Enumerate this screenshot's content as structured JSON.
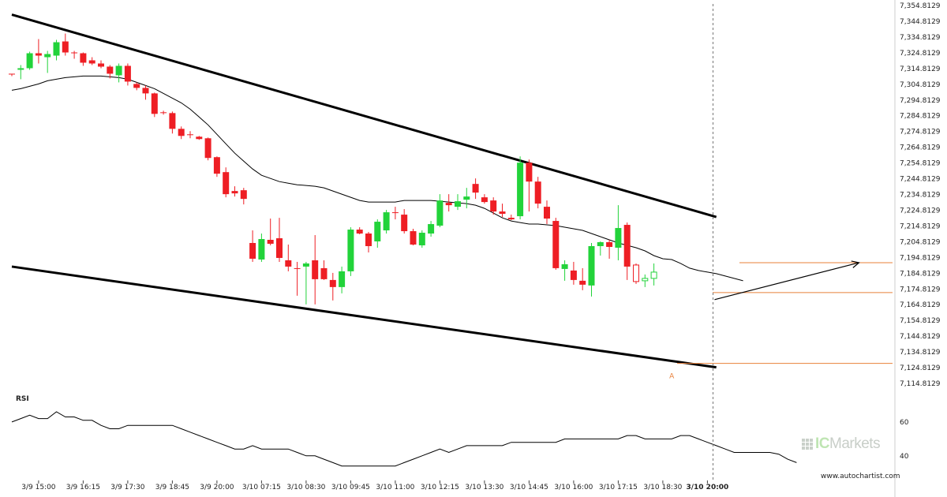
{
  "chart_data": {
    "type": "candlestick",
    "y_ticks": [
      "7,354.8129",
      "7,344.8129",
      "7,334.8129",
      "7,324.8129",
      "7,314.8129",
      "7,304.8129",
      "7,294.8129",
      "7,284.8129",
      "7,274.8129",
      "7,264.8129",
      "7,254.8129",
      "7,244.8129",
      "7,234.8129",
      "7,224.8129",
      "7,214.8129",
      "7,204.8129",
      "7,194.8129",
      "7,184.8129",
      "7,174.8129",
      "7,164.8129",
      "7,154.8129",
      "7,144.8129",
      "7,134.8129",
      "7,124.8129",
      "7,114.8129"
    ],
    "ylim": [
      7114.8129,
      7354.8129
    ],
    "x_ticks": [
      {
        "label": "3/9 15:00",
        "index": 3
      },
      {
        "label": "3/9 16:15",
        "index": 8
      },
      {
        "label": "3/9 17:30",
        "index": 13
      },
      {
        "label": "3/9 18:45",
        "index": 18
      },
      {
        "label": "3/9 20:00",
        "index": 23
      },
      {
        "label": "3/10 07:15",
        "index": 28
      },
      {
        "label": "3/10 08:30",
        "index": 33
      },
      {
        "label": "3/10 09:45",
        "index": 38
      },
      {
        "label": "3/10 11:00",
        "index": 43
      },
      {
        "label": "3/10 12:15",
        "index": 48
      },
      {
        "label": "3/10 13:30",
        "index": 53
      },
      {
        "label": "3/10 14:45",
        "index": 58
      },
      {
        "label": "3/10 16:00",
        "index": 63
      },
      {
        "label": "3/10 17:15",
        "index": 68
      },
      {
        "label": "3/10 18:30",
        "index": 73
      },
      {
        "label": "3/10 20:00",
        "index": 78,
        "highlight": true
      }
    ],
    "candles": [
      [
        7311.5,
        7311.5,
        7310.0,
        7311.0
      ],
      [
        7314.0,
        7317.0,
        7308.0,
        7315.0
      ],
      [
        7315.0,
        7325.5,
        7314.0,
        7324.5
      ],
      [
        7324.5,
        7333.5,
        7318.0,
        7323.0
      ],
      [
        7322.0,
        7326.0,
        7312.0,
        7324.0
      ],
      [
        7323.0,
        7333.0,
        7320.0,
        7331.5
      ],
      [
        7332.0,
        7337.0,
        7323.0,
        7325.0
      ],
      [
        7325.0,
        7326.0,
        7321.0,
        7324.5
      ],
      [
        7324.5,
        7325.0,
        7316.5,
        7318.5
      ],
      [
        7320.0,
        7322.0,
        7317.0,
        7318.0
      ],
      [
        7318.0,
        7320.0,
        7315.0,
        7316.0
      ],
      [
        7316.0,
        7317.0,
        7308.5,
        7311.5
      ],
      [
        7310.5,
        7318.0,
        7306.0,
        7316.5
      ],
      [
        7316.5,
        7318.0,
        7304.0,
        7306.5
      ],
      [
        7305.0,
        7306.0,
        7301.0,
        7302.5
      ],
      [
        7302.5,
        7304.0,
        7295.0,
        7299.0
      ],
      [
        7299.0,
        7299.5,
        7284.0,
        7286.0
      ],
      [
        7287.0,
        7288.0,
        7285.5,
        7286.5
      ],
      [
        7286.5,
        7287.5,
        7273.5,
        7276.5
      ],
      [
        7276.5,
        7278.0,
        7270.0,
        7272.0
      ],
      [
        7273.0,
        7275.0,
        7270.5,
        7272.5
      ],
      [
        7271.5,
        7272.0,
        7269.5,
        7270.0
      ],
      [
        7270.5,
        7271.0,
        7256.5,
        7258.0
      ],
      [
        7258.5,
        7259.0,
        7246.0,
        7248.0
      ],
      [
        7249.0,
        7252.0,
        7233.0,
        7235.0
      ],
      [
        7237.0,
        7240.0,
        7233.5,
        7235.5
      ],
      [
        7237.5,
        7239.0,
        7228.5,
        7232.0
      ],
      [
        7204.0,
        7212.0,
        7192.0,
        7194.0
      ],
      [
        7193.5,
        7210.0,
        7192.0,
        7206.5
      ],
      [
        7206.0,
        7219.5,
        7202.5,
        7203.5
      ],
      [
        7207.0,
        7220.0,
        7192.0,
        7194.5
      ],
      [
        7193.0,
        7203.0,
        7186.0,
        7189.0
      ],
      [
        7188.0,
        7192.0,
        7170.5,
        7187.5
      ],
      [
        7189.0,
        7192.0,
        7165.0,
        7191.0
      ],
      [
        7193.0,
        7209.0,
        7165.0,
        7181.0
      ],
      [
        7188.0,
        7193.0,
        7180.5,
        7181.0
      ],
      [
        7180.5,
        7185.0,
        7167.5,
        7176.0
      ],
      [
        7176.0,
        7189.0,
        7172.0,
        7186.0
      ],
      [
        7186.0,
        7214.0,
        7183.0,
        7212.5
      ],
      [
        7212.5,
        7214.0,
        7209.5,
        7210.0
      ],
      [
        7210.0,
        7211.0,
        7198.0,
        7202.0
      ],
      [
        7205.0,
        7219.0,
        7201.0,
        7217.5
      ],
      [
        7212.0,
        7225.0,
        7210.0,
        7223.5
      ],
      [
        7223.5,
        7227.0,
        7219.0,
        7223.0
      ],
      [
        7222.0,
        7225.5,
        7210.0,
        7211.5
      ],
      [
        7211.5,
        7213.0,
        7202.5,
        7203.0
      ],
      [
        7202.5,
        7212.0,
        7201.0,
        7210.5
      ],
      [
        7210.0,
        7218.0,
        7208.0,
        7216.0
      ],
      [
        7215.0,
        7235.0,
        7214.0,
        7231.0
      ],
      [
        7229.5,
        7235.0,
        7224.0,
        7228.0
      ],
      [
        7227.0,
        7235.0,
        7225.0,
        7230.5
      ],
      [
        7231.5,
        7239.0,
        7226.0,
        7233.5
      ],
      [
        7241.5,
        7245.0,
        7232.0,
        7236.0
      ],
      [
        7233.0,
        7235.0,
        7229.0,
        7230.0
      ],
      [
        7231.0,
        7233.0,
        7222.0,
        7224.0
      ],
      [
        7224.0,
        7229.0,
        7220.5,
        7222.5
      ],
      [
        7220.0,
        7222.0,
        7218.5,
        7219.0
      ],
      [
        7221.0,
        7259.0,
        7219.0,
        7255.0
      ],
      [
        7255.0,
        7257.0,
        7224.0,
        7243.0
      ],
      [
        7243.0,
        7246.0,
        7226.0,
        7229.0
      ],
      [
        7227.0,
        7231.0,
        7216.0,
        7219.5
      ],
      [
        7218.0,
        7220.0,
        7187.0,
        7188.0
      ],
      [
        7187.5,
        7193.0,
        7180.0,
        7190.5
      ],
      [
        7186.5,
        7192.0,
        7177.5,
        7180.5
      ],
      [
        7180.0,
        7188.0,
        7174.0,
        7177.5
      ],
      [
        7177.0,
        7204.0,
        7170.0,
        7202.0
      ],
      [
        7202.0,
        7205.0,
        7196.0,
        7204.5
      ],
      [
        7204.5,
        7206.0,
        7194.0,
        7201.5
      ],
      [
        7201.0,
        7228.0,
        7193.0,
        7213.5
      ],
      [
        7215.5,
        7217.0,
        7180.5,
        7189.0
      ],
      [
        7190.0,
        7191.0,
        7178.0,
        7179.5
      ],
      [
        7180.0,
        7184.0,
        7176.0,
        7181.5
      ],
      [
        7181.5,
        7191.0,
        7177.0,
        7185.5
      ]
    ],
    "moving_average": [
      7301,
      7302,
      7303.5,
      7305,
      7307,
      7308,
      7309,
      7309.5,
      7310,
      7310,
      7310,
      7309.5,
      7309,
      7308,
      7306,
      7304,
      7302,
      7299,
      7296,
      7293,
      7289,
      7284,
      7279,
      7273,
      7267,
      7261,
      7256,
      7251,
      7247,
      7245,
      7243,
      7242,
      7241,
      7240.5,
      7240,
      7239,
      7237,
      7235,
      7233,
      7231,
      7230,
      7230,
      7230,
      7230,
      7231,
      7231,
      7231,
      7231,
      7230.5,
      7230,
      7229.5,
      7229,
      7228,
      7226,
      7223,
      7220,
      7218,
      7217,
      7216,
      7216,
      7215.5,
      7215,
      7214,
      7213,
      7212,
      7210,
      7208,
      7206,
      7204,
      7202.5,
      7201,
      7199,
      7196,
      7194,
      7193.5,
      7191,
      7188,
      7186.5,
      7185.5,
      7184.5,
      7183,
      7181.5,
      7180
    ],
    "indicator": {
      "name": "RSI",
      "y_ticks": [
        "60",
        "40"
      ],
      "values": [
        60,
        62,
        64,
        62,
        62,
        66,
        63,
        63,
        61,
        61,
        58,
        56,
        56,
        58,
        58,
        58,
        58,
        58,
        58,
        56,
        54,
        52,
        50,
        48,
        46,
        44,
        44,
        46,
        44,
        44,
        44,
        44,
        42,
        40,
        40,
        38,
        36,
        34,
        34,
        34,
        34,
        34,
        34,
        34,
        36,
        38,
        40,
        42,
        44,
        42,
        44,
        46,
        46,
        46,
        46,
        46,
        48,
        48,
        48,
        48,
        48,
        48,
        50,
        50,
        50,
        50,
        50,
        50,
        50,
        52,
        52,
        50,
        50,
        50,
        50,
        52,
        52,
        50,
        48,
        46,
        44,
        42,
        42,
        42,
        42,
        42,
        41,
        38,
        36
      ]
    },
    "trendlines": [
      {
        "name": "upper-channel",
        "from": [
          0,
          7349
        ],
        "to": [
          79,
          7220.5
        ]
      },
      {
        "name": "lower-channel",
        "from": [
          0,
          7189
        ],
        "to": [
          79,
          7125
        ]
      }
    ],
    "levels": [
      {
        "name": "resistance-level",
        "value": 7191.5
      },
      {
        "name": "entry-level",
        "value": 7172.5
      },
      {
        "name": "support-level",
        "value": 7127.5
      }
    ],
    "forecast_arrow": {
      "from": [
        78.8,
        7168
      ],
      "to": [
        95,
        7191.5
      ]
    },
    "marker_label": "A",
    "colors": {
      "up": "#22d33a",
      "down": "#ee1e24",
      "accent": "#e8803a",
      "line": "#000000"
    }
  },
  "brand": {
    "name_prefix": "IC",
    "name_suffix": "Markets"
  },
  "footer": {
    "site": "www.autochartist.com"
  }
}
